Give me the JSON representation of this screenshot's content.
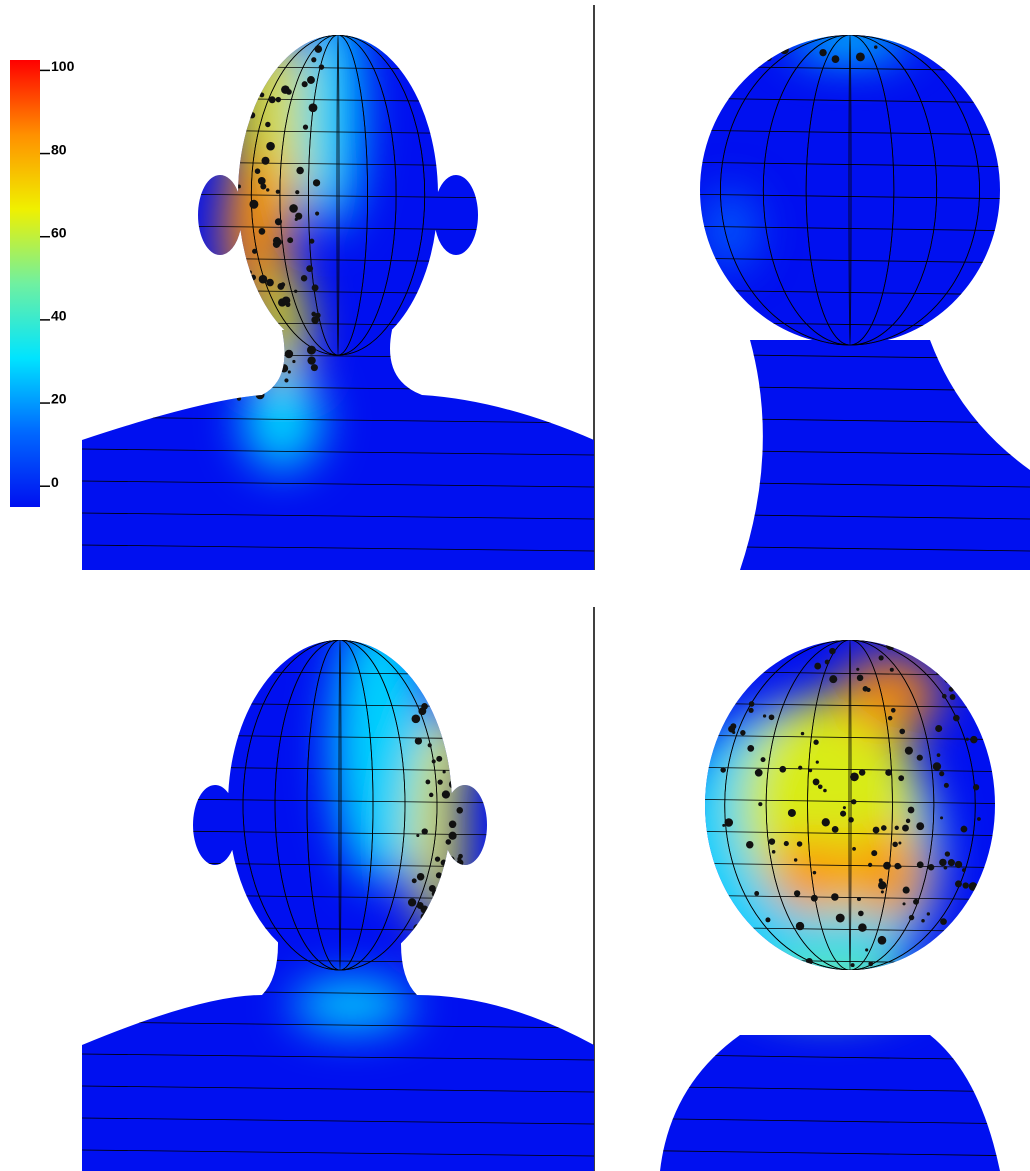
{
  "colorbar": {
    "ticks": [
      0,
      20,
      40,
      60,
      80,
      100
    ],
    "lim": [
      -5,
      102.5
    ],
    "colors": [
      "#0010f0",
      "#0068ff",
      "#00e4ff",
      "#70f0a0",
      "#f0f000",
      "#ff9000",
      "#ff0000"
    ]
  }
}
